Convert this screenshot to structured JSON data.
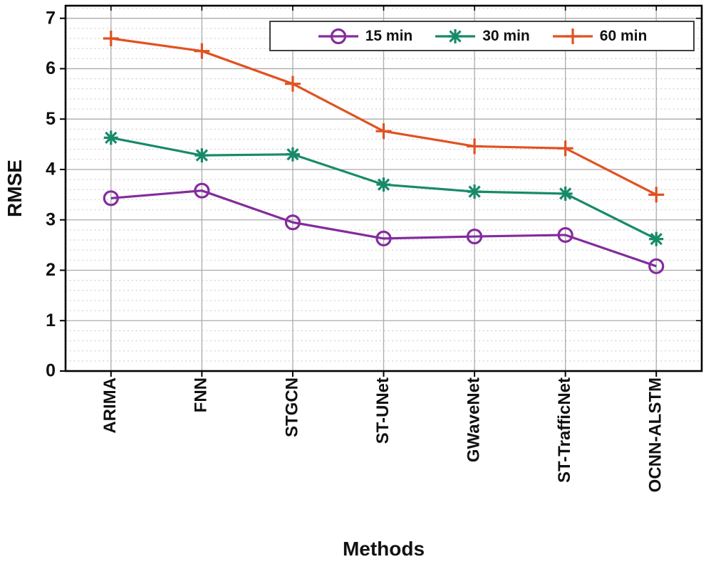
{
  "chart_data": {
    "type": "line",
    "title": "",
    "xlabel": "Methods",
    "ylabel": "RMSE",
    "categories": [
      "ARIMA",
      "FNN",
      "STGCN",
      "ST-UNet",
      "GWaveNet",
      "ST-TrafficNet",
      "OCNN-ALSTM"
    ],
    "yticks": [
      "0",
      "1",
      "2",
      "3",
      "4",
      "5",
      "6",
      "7"
    ],
    "ylim": [
      0,
      7.25
    ],
    "grid": "major solid + minor dotted (0.2 step)",
    "legend_position": "top inside, horizontal",
    "series": [
      {
        "name": "15 min",
        "marker": "circle",
        "color": "#832C9C",
        "values": [
          3.43,
          3.58,
          2.95,
          2.63,
          2.67,
          2.7,
          2.08
        ]
      },
      {
        "name": "30 min",
        "marker": "asterisk",
        "color": "#188A6A",
        "values": [
          4.63,
          4.28,
          4.3,
          3.7,
          3.56,
          3.52,
          2.62
        ]
      },
      {
        "name": "60 min",
        "marker": "plus",
        "color": "#E05222",
        "values": [
          6.6,
          6.35,
          5.7,
          4.76,
          4.46,
          4.42,
          3.5
        ]
      }
    ]
  },
  "colors": {
    "axis": "#000000",
    "major_grid": "#ababab",
    "minor_grid": "#cccccc",
    "text": "#111111",
    "legend_border": "#404040"
  }
}
